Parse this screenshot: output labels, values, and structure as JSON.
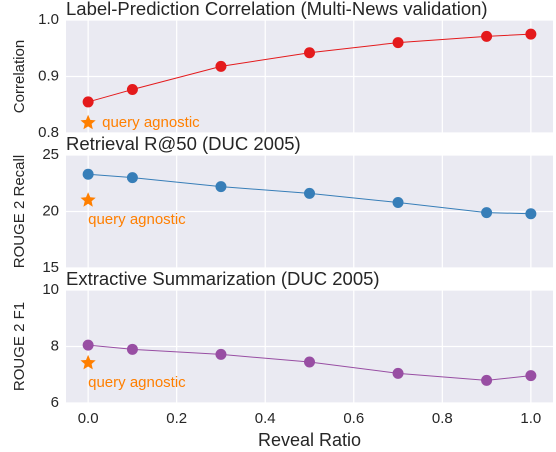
{
  "chart_data": [
    {
      "type": "line",
      "title": "Label-Prediction Correlation (Multi-News validation)",
      "ylabel": "Correlation",
      "x": [
        0,
        0.1,
        0.3,
        0.5,
        0.7,
        0.9,
        1.0
      ],
      "series": [
        {
          "color": "#e41a1c",
          "values": [
            0.855,
            0.877,
            0.918,
            0.942,
            0.96,
            0.971,
            0.975
          ]
        }
      ],
      "annotation": {
        "text": "query agnostic",
        "x": 0,
        "y": 0.818,
        "color": "#ff7f00"
      },
      "xlim": [
        -0.05,
        1.05
      ],
      "xticks": [
        {
          "value": 0,
          "label": "0.0"
        },
        0.2,
        0.4,
        0.6,
        0.8,
        {
          "value": 1,
          "label": "1.0"
        }
      ],
      "ylim": [
        0.8,
        1.0
      ],
      "yticks": [
        {
          "value": 0.8,
          "label": "0.8"
        },
        0.9,
        {
          "value": 1.0,
          "label": "1.0"
        }
      ],
      "grid": true
    },
    {
      "type": "line",
      "title": "Retrieval R@50 (DUC 2005)",
      "ylabel": "ROUGE 2 Recall",
      "x": [
        0,
        0.1,
        0.3,
        0.5,
        0.7,
        0.9,
        1.0
      ],
      "series": [
        {
          "color": "#377eb8",
          "values": [
            23.3,
            23.0,
            22.2,
            21.6,
            20.8,
            19.9,
            19.8
          ]
        }
      ],
      "annotation": {
        "text": "query agnostic",
        "x": 0,
        "y": 21.0,
        "color": "#ff7f00"
      },
      "xlim": [
        -0.05,
        1.05
      ],
      "xticks": [
        {
          "value": 0,
          "label": "0.0"
        },
        0.2,
        0.4,
        0.6,
        0.8,
        {
          "value": 1,
          "label": "1.0"
        }
      ],
      "ylim": [
        15,
        25
      ],
      "yticks": [
        15,
        20,
        25
      ],
      "grid": true
    },
    {
      "type": "line",
      "title": "Extractive Summarization (DUC 2005)",
      "ylabel": "ROUGE 2 F1",
      "xlabel": "Reveal Ratio",
      "x": [
        0,
        0.1,
        0.3,
        0.5,
        0.7,
        0.9,
        1.0
      ],
      "series": [
        {
          "color": "#984ea3",
          "values": [
            8.05,
            7.9,
            7.72,
            7.45,
            7.05,
            6.8,
            6.97
          ]
        }
      ],
      "annotation": {
        "text": "query agnostic",
        "x": 0,
        "y": 7.42,
        "color": "#ff7f00"
      },
      "xlim": [
        -0.05,
        1.05
      ],
      "xticks": [
        {
          "value": 0,
          "label": "0.0"
        },
        0.2,
        0.4,
        0.6,
        0.8,
        {
          "value": 1,
          "label": "1.0"
        }
      ],
      "ylim": [
        6,
        10
      ],
      "yticks": [
        6,
        8,
        10
      ],
      "grid": true
    }
  ]
}
